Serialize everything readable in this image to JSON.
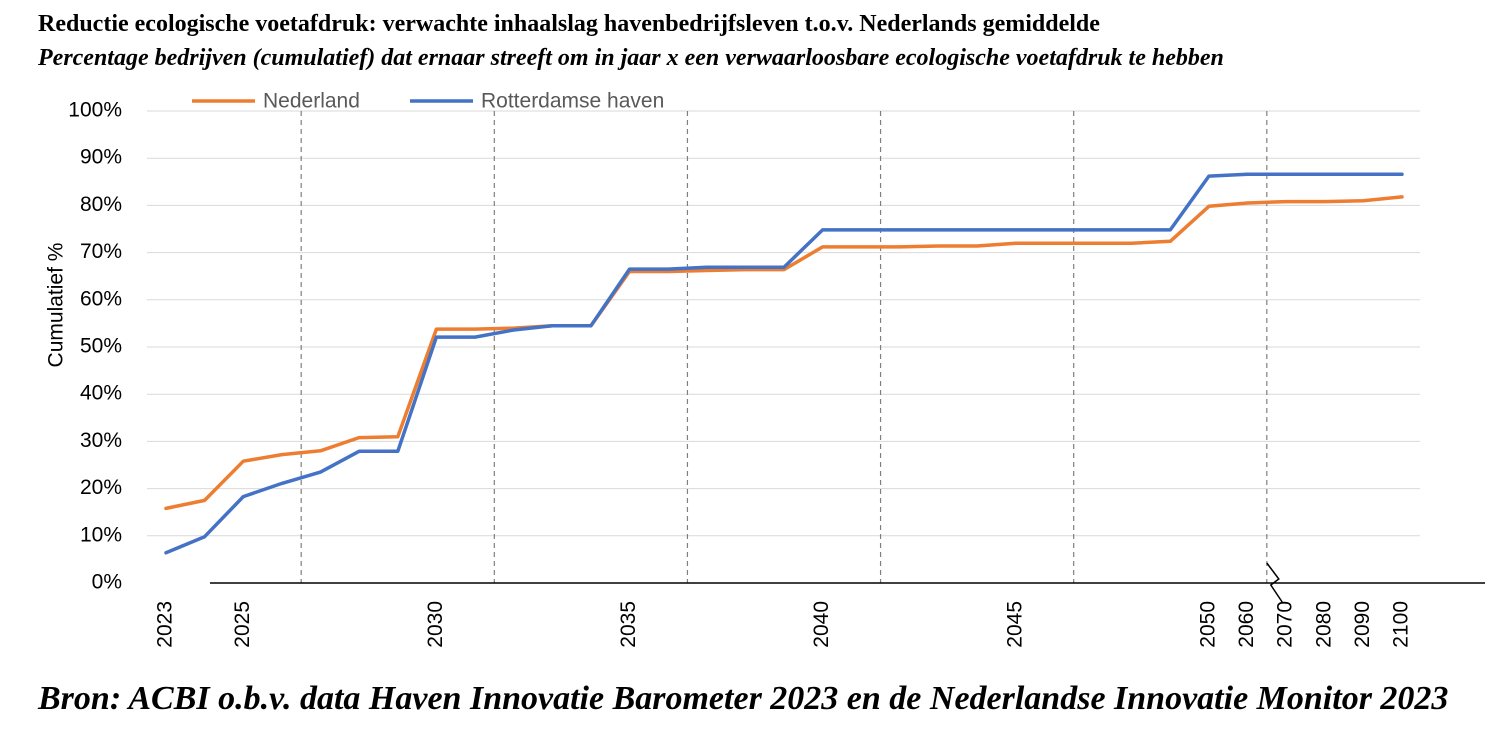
{
  "chart_data": {
    "type": "line",
    "title": "Reductie ecologische voetafdruk: verwachte inhaalslag havenbedrijfsleven t.o.v. Nederlands gemiddelde",
    "subtitle": "Percentage bedrijven (cumulatief) dat ernaar streeft om in jaar x een verwaarloosbare ecologische voetafdruk te hebben",
    "source": "Bron: ACBI o.b.v. data Haven Innovatie Barometer 2023 en de Nederlandse Innovatie Monitor 2023",
    "ylabel": "Cumulatief %",
    "xlabel": "",
    "ylim": [
      0,
      100
    ],
    "yticks": [
      "0%",
      "10%",
      "20%",
      "30%",
      "40%",
      "50%",
      "60%",
      "70%",
      "80%",
      "90%",
      "100%"
    ],
    "categories": [
      "2023",
      "2024",
      "2025",
      "2026",
      "2027",
      "2028",
      "2029",
      "2030",
      "2031",
      "2032",
      "2033",
      "2034",
      "2035",
      "2036",
      "2037",
      "2038",
      "2039",
      "2040",
      "2041",
      "2042",
      "2043",
      "2044",
      "2045",
      "2046",
      "2047",
      "2048",
      "2049",
      "2050",
      "2060",
      "2070",
      "2080",
      "2090",
      "2100"
    ],
    "category_labels": [
      "2023",
      "",
      "2025",
      "",
      "",
      "",
      "",
      "2030",
      "",
      "",
      "",
      "",
      "2035",
      "",
      "",
      "",
      "",
      "2040",
      "",
      "",
      "",
      "",
      "2045",
      "",
      "",
      "",
      "",
      "2050",
      "2060",
      "2070",
      "2080",
      "2090",
      "2100"
    ],
    "grid": "horizontal",
    "legend_position": "top-left",
    "series": [
      {
        "name": "Nederland",
        "color": "#ED7D31",
        "values": [
          15.8,
          17.5,
          25.8,
          27.2,
          28.0,
          30.8,
          31.0,
          53.8,
          53.8,
          54.0,
          54.5,
          54.5,
          66.0,
          66.0,
          66.2,
          66.4,
          66.4,
          71.2,
          71.2,
          71.2,
          71.4,
          71.4,
          72.0,
          72.0,
          72.0,
          72.0,
          72.4,
          79.8,
          80.5,
          80.8,
          80.8,
          81.0,
          81.8
        ]
      },
      {
        "name": "Rotterdamse haven",
        "color": "#4472C4",
        "values": [
          6.4,
          9.8,
          18.3,
          21.1,
          23.5,
          27.9,
          27.9,
          52.1,
          52.1,
          53.6,
          54.5,
          54.5,
          66.5,
          66.5,
          66.9,
          66.9,
          66.9,
          74.8,
          74.8,
          74.8,
          74.8,
          74.8,
          74.8,
          74.8,
          74.8,
          74.8,
          74.8,
          86.2,
          86.6,
          86.6,
          86.6,
          86.6,
          86.6
        ]
      }
    ],
    "vertical_dashed_lines_between": [
      "2026-2027",
      "2031-2032",
      "2036-2037",
      "2041-2042",
      "2046-2047",
      "2060-2070"
    ],
    "axis_break_between": [
      "2060",
      "2070"
    ]
  }
}
